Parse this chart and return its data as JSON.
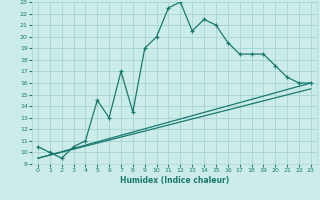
{
  "xlabel": "Humidex (Indice chaleur)",
  "bg_color": "#ccecea",
  "grid_color": "#aad8d5",
  "line_color": "#1a7a6e",
  "xlim": [
    -0.5,
    23.5
  ],
  "ylim": [
    9,
    23
  ],
  "xticks": [
    0,
    1,
    2,
    3,
    4,
    5,
    6,
    7,
    8,
    9,
    10,
    11,
    12,
    13,
    14,
    15,
    16,
    17,
    18,
    19,
    20,
    21,
    22,
    23
  ],
  "yticks": [
    9,
    10,
    11,
    12,
    13,
    14,
    15,
    16,
    17,
    18,
    19,
    20,
    21,
    22,
    23
  ],
  "line1_x": [
    0,
    1,
    2,
    3,
    4,
    5,
    6,
    7,
    8,
    9,
    10,
    11,
    12,
    13,
    14,
    15,
    16,
    17,
    18,
    19,
    20,
    21,
    22,
    23
  ],
  "line1_y": [
    10.5,
    10.0,
    9.5,
    10.5,
    11.0,
    14.5,
    13.0,
    17.0,
    13.5,
    19.0,
    20.0,
    22.5,
    23.0,
    20.5,
    21.5,
    21.0,
    19.5,
    18.5,
    18.5,
    18.5,
    17.5,
    16.5,
    16.0,
    16.0
  ],
  "line2_x": [
    0,
    23
  ],
  "line2_y": [
    9.5,
    16.0
  ],
  "line3_x": [
    0,
    23
  ],
  "line3_y": [
    9.5,
    15.5
  ]
}
